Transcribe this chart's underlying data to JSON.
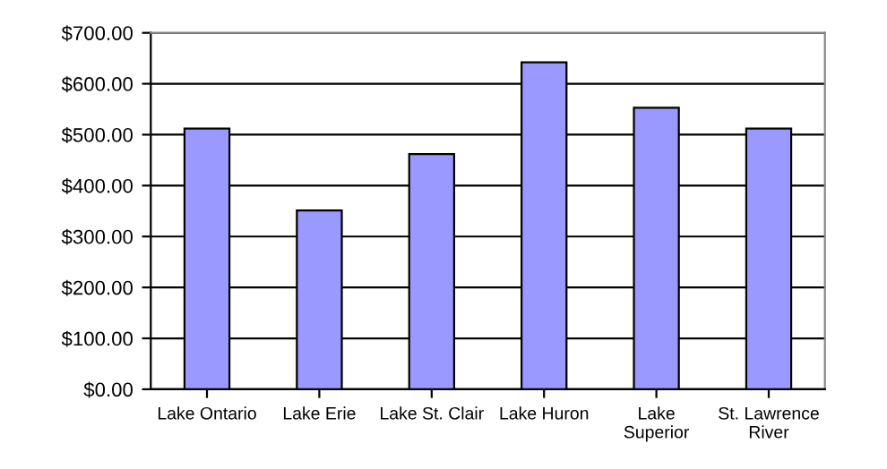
{
  "chart_data": {
    "type": "bar",
    "categories": [
      "Lake Ontario",
      "Lake Erie",
      "Lake St. Clair",
      "Lake Huron",
      "Lake\nSuperior",
      "St. Lawrence\nRiver"
    ],
    "values": [
      512,
      351,
      462,
      642,
      553,
      512
    ],
    "color": "#9999ff",
    "ylim": [
      0,
      700
    ],
    "yticks": [
      {
        "value": 0,
        "label": "$0.00"
      },
      {
        "value": 100,
        "label": "$100.00"
      },
      {
        "value": 200,
        "label": "$200.00"
      },
      {
        "value": 300,
        "label": "$300.00"
      },
      {
        "value": 400,
        "label": "$400.00"
      },
      {
        "value": 500,
        "label": "$500.00"
      },
      {
        "value": 600,
        "label": "$600.00"
      },
      {
        "value": 700,
        "label": "$700.00"
      }
    ],
    "grid": "y"
  }
}
